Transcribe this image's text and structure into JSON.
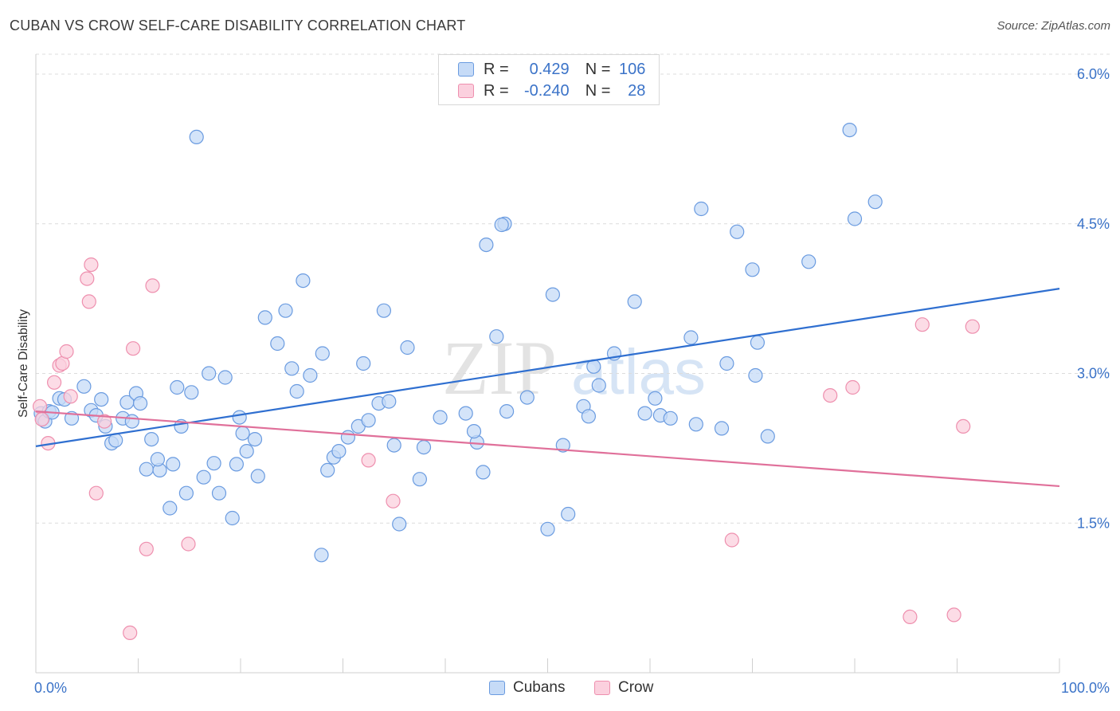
{
  "title": "CUBAN VS CROW SELF-CARE DISABILITY CORRELATION CHART",
  "source": "Source: ZipAtlas.com",
  "watermark": {
    "zip": "ZIP",
    "atlas": "atlas"
  },
  "legend_top": [
    {
      "r_label": "R =",
      "r_value": "0.429",
      "n_label": "N =",
      "n_value": "106",
      "color": "#6a9be0",
      "fill": "#c6dbf7"
    },
    {
      "r_label": "R =",
      "r_value": "-0.240",
      "n_label": "N =",
      "n_value": "28",
      "color": "#ee8fae",
      "fill": "#fbd0de"
    }
  ],
  "legend_bottom": [
    {
      "label": "Cubans",
      "color": "#6a9be0",
      "fill": "#c6dbf7"
    },
    {
      "label": "Crow",
      "color": "#ee8fae",
      "fill": "#fbd0de"
    }
  ],
  "chart_data": {
    "type": "scatter",
    "title": "CUBAN VS CROW SELF-CARE DISABILITY CORRELATION CHART",
    "xlabel": "",
    "ylabel": "Self-Care Disability",
    "xlim": [
      0,
      100
    ],
    "ylim": [
      0,
      6.2
    ],
    "x_tick_labels": [
      "0.0%",
      "100.0%"
    ],
    "y_ticks": [
      1.5,
      3.0,
      4.5,
      6.0
    ],
    "y_tick_labels": [
      "1.5%",
      "3.0%",
      "4.5%",
      "6.0%"
    ],
    "grid": "horizontal dashed",
    "legend_position": "top-center",
    "series": [
      {
        "name": "Cubans",
        "color": "#6a9be0",
        "fill": "#c6dbf7",
        "trend": {
          "x": [
            0,
            100
          ],
          "y": [
            2.27,
            3.85
          ]
        },
        "points": [
          [
            0.5,
            2.6
          ],
          [
            0.7,
            2.55
          ],
          [
            0.9,
            2.52
          ],
          [
            1.3,
            2.62
          ],
          [
            1.6,
            2.61
          ],
          [
            2.3,
            2.75
          ],
          [
            2.8,
            2.74
          ],
          [
            3.5,
            2.55
          ],
          [
            4.7,
            2.87
          ],
          [
            5.4,
            2.63
          ],
          [
            5.9,
            2.58
          ],
          [
            6.4,
            2.74
          ],
          [
            6.8,
            2.47
          ],
          [
            7.4,
            2.3
          ],
          [
            7.8,
            2.33
          ],
          [
            8.5,
            2.55
          ],
          [
            8.9,
            2.71
          ],
          [
            9.4,
            2.52
          ],
          [
            9.8,
            2.8
          ],
          [
            10.2,
            2.7
          ],
          [
            11.3,
            2.34
          ],
          [
            10.8,
            2.04
          ],
          [
            12.1,
            2.03
          ],
          [
            11.9,
            2.14
          ],
          [
            13.1,
            1.65
          ],
          [
            13.4,
            2.09
          ],
          [
            13.8,
            2.86
          ],
          [
            14.2,
            2.47
          ],
          [
            14.7,
            1.8
          ],
          [
            15.2,
            2.81
          ],
          [
            15.7,
            5.37
          ],
          [
            16.4,
            1.96
          ],
          [
            16.9,
            3.0
          ],
          [
            17.4,
            2.1
          ],
          [
            17.9,
            1.8
          ],
          [
            18.5,
            2.96
          ],
          [
            19.2,
            1.55
          ],
          [
            19.6,
            2.09
          ],
          [
            19.9,
            2.56
          ],
          [
            20.6,
            2.22
          ],
          [
            20.2,
            2.4
          ],
          [
            21.4,
            2.34
          ],
          [
            21.7,
            1.97
          ],
          [
            22.4,
            3.56
          ],
          [
            23.6,
            3.3
          ],
          [
            24.4,
            3.63
          ],
          [
            25.0,
            3.05
          ],
          [
            25.5,
            2.82
          ],
          [
            26.1,
            3.93
          ],
          [
            26.8,
            2.98
          ],
          [
            27.9,
            1.18
          ],
          [
            28.0,
            3.2
          ],
          [
            28.5,
            2.03
          ],
          [
            29.1,
            2.16
          ],
          [
            29.6,
            2.22
          ],
          [
            30.5,
            2.36
          ],
          [
            31.5,
            2.47
          ],
          [
            32.0,
            3.1
          ],
          [
            32.5,
            2.53
          ],
          [
            33.5,
            2.7
          ],
          [
            34.0,
            3.63
          ],
          [
            34.5,
            2.72
          ],
          [
            35.0,
            2.28
          ],
          [
            35.5,
            1.49
          ],
          [
            36.3,
            3.26
          ],
          [
            37.5,
            1.94
          ],
          [
            37.9,
            2.26
          ],
          [
            39.5,
            2.56
          ],
          [
            42.0,
            2.6
          ],
          [
            43.1,
            2.31
          ],
          [
            42.8,
            2.42
          ],
          [
            43.7,
            2.01
          ],
          [
            44.0,
            4.29
          ],
          [
            45.0,
            3.37
          ],
          [
            46.0,
            2.62
          ],
          [
            45.8,
            4.5
          ],
          [
            45.5,
            4.49
          ],
          [
            48.0,
            2.76
          ],
          [
            50.0,
            1.44
          ],
          [
            50.5,
            3.79
          ],
          [
            51.5,
            2.28
          ],
          [
            52.0,
            1.59
          ],
          [
            53.5,
            2.67
          ],
          [
            54.0,
            2.57
          ],
          [
            54.5,
            3.07
          ],
          [
            55.0,
            2.88
          ],
          [
            56.5,
            3.2
          ],
          [
            58.5,
            3.72
          ],
          [
            59.5,
            2.6
          ],
          [
            60.5,
            2.75
          ],
          [
            61.0,
            2.58
          ],
          [
            62.0,
            2.55
          ],
          [
            64.0,
            3.36
          ],
          [
            64.5,
            2.49
          ],
          [
            65.0,
            4.65
          ],
          [
            67.0,
            2.45
          ],
          [
            67.5,
            3.1
          ],
          [
            68.5,
            4.42
          ],
          [
            70.0,
            4.04
          ],
          [
            70.5,
            3.31
          ],
          [
            71.5,
            2.37
          ],
          [
            75.5,
            4.12
          ],
          [
            79.5,
            5.44
          ],
          [
            80.0,
            4.55
          ],
          [
            82.0,
            4.72
          ],
          [
            70.3,
            2.98
          ]
        ]
      },
      {
        "name": "Crow",
        "color": "#ee8fae",
        "fill": "#fbd0de",
        "trend": {
          "x": [
            0,
            100
          ],
          "y": [
            2.62,
            1.87
          ]
        },
        "points": [
          [
            0.4,
            2.67
          ],
          [
            0.6,
            2.54
          ],
          [
            1.2,
            2.3
          ],
          [
            1.8,
            2.91
          ],
          [
            2.3,
            3.08
          ],
          [
            2.6,
            3.1
          ],
          [
            3.0,
            3.22
          ],
          [
            3.4,
            2.77
          ],
          [
            5.0,
            3.95
          ],
          [
            5.2,
            3.72
          ],
          [
            5.4,
            4.09
          ],
          [
            5.9,
            1.8
          ],
          [
            6.7,
            2.52
          ],
          [
            9.2,
            0.4
          ],
          [
            9.5,
            3.25
          ],
          [
            10.8,
            1.24
          ],
          [
            11.4,
            3.88
          ],
          [
            14.9,
            1.29
          ],
          [
            32.5,
            2.13
          ],
          [
            34.9,
            1.72
          ],
          [
            68.0,
            1.33
          ],
          [
            77.6,
            2.78
          ],
          [
            79.8,
            2.86
          ],
          [
            85.4,
            0.56
          ],
          [
            86.6,
            3.49
          ],
          [
            89.7,
            0.58
          ],
          [
            90.6,
            2.47
          ],
          [
            91.5,
            3.47
          ]
        ]
      }
    ]
  }
}
